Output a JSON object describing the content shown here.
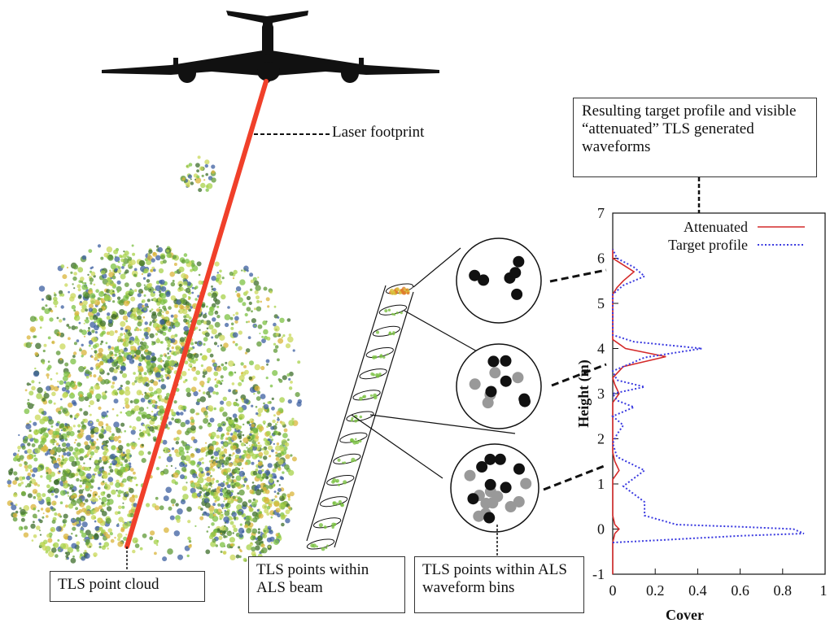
{
  "labels": {
    "laser_footprint": "Laser footprint",
    "tls_point_cloud": "TLS point cloud",
    "tls_points_beam": "TLS points within ALS beam",
    "tls_points_bins": "TLS points within ALS waveform bins",
    "target_profile_caption": "Resulting target profile and visible “attenuated” TLS generated waveforms"
  },
  "colors": {
    "laser": "#f0402a",
    "canopy": "#7cc243",
    "canopy_dark": "#3e6e2b",
    "attenuated": "#d42a2a",
    "target": "#3a3ae0"
  },
  "icons": [
    "aircraft-icon"
  ],
  "circles": {
    "top": {
      "black": 6,
      "gray": 0
    },
    "middle": {
      "black": 6,
      "gray": 5
    },
    "bottom": {
      "black": 8,
      "gray": 11
    }
  },
  "chart_data": {
    "type": "line",
    "xlabel": "Cover",
    "ylabel": "Height (m)",
    "xlim": [
      0,
      1
    ],
    "ylim": [
      -1,
      7
    ],
    "xticks": [
      "0",
      "0.2",
      "0.4",
      "0.6",
      "0.8",
      "1"
    ],
    "yticks": [
      "-1",
      "0",
      "1",
      "2",
      "3",
      "4",
      "5",
      "6",
      "7"
    ],
    "legend_position": "top-right",
    "series": [
      {
        "name": "Attenuated",
        "color": "#d42a2a",
        "style": "solid",
        "points": [
          [
            0,
            -1
          ],
          [
            0,
            -0.3
          ],
          [
            0.01,
            -0.1
          ],
          [
            0.03,
            0
          ],
          [
            0.01,
            0.1
          ],
          [
            0,
            0.3
          ],
          [
            0,
            1.1
          ],
          [
            0.03,
            1.3
          ],
          [
            0.01,
            1.5
          ],
          [
            0,
            1.7
          ],
          [
            0,
            2.8
          ],
          [
            0.03,
            3.0
          ],
          [
            0.01,
            3.2
          ],
          [
            0,
            3.35
          ],
          [
            0.05,
            3.6
          ],
          [
            0.25,
            3.82
          ],
          [
            0.06,
            4.0
          ],
          [
            0,
            4.2
          ],
          [
            0,
            5.2
          ],
          [
            0.02,
            5.35
          ],
          [
            0.05,
            5.5
          ],
          [
            0.1,
            5.7
          ],
          [
            0.05,
            5.85
          ],
          [
            0,
            6.0
          ],
          [
            0,
            6.2
          ]
        ]
      },
      {
        "name": "Target profile",
        "color": "#3a3ae0",
        "style": "dotted",
        "points": [
          [
            0,
            -0.3
          ],
          [
            0.2,
            -0.25
          ],
          [
            0.6,
            -0.15
          ],
          [
            0.9,
            -0.1
          ],
          [
            0.85,
            0
          ],
          [
            0.6,
            0.05
          ],
          [
            0.3,
            0.1
          ],
          [
            0.15,
            0.3
          ],
          [
            0.15,
            0.6
          ],
          [
            0.05,
            0.95
          ],
          [
            0.15,
            1.3
          ],
          [
            0.02,
            1.6
          ],
          [
            0,
            1.9
          ],
          [
            0.02,
            2.1
          ],
          [
            0.05,
            2.3
          ],
          [
            0,
            2.5
          ],
          [
            0.1,
            2.7
          ],
          [
            0.02,
            2.85
          ],
          [
            0,
            3.0
          ],
          [
            0.15,
            3.15
          ],
          [
            0.02,
            3.3
          ],
          [
            0,
            3.5
          ],
          [
            0.15,
            3.8
          ],
          [
            0.42,
            4.0
          ],
          [
            0.1,
            4.15
          ],
          [
            0,
            4.3
          ],
          [
            0,
            5.2
          ],
          [
            0.05,
            5.4
          ],
          [
            0.15,
            5.6
          ],
          [
            0.1,
            5.8
          ],
          [
            0.02,
            6.0
          ],
          [
            0,
            6.2
          ]
        ]
      }
    ]
  }
}
